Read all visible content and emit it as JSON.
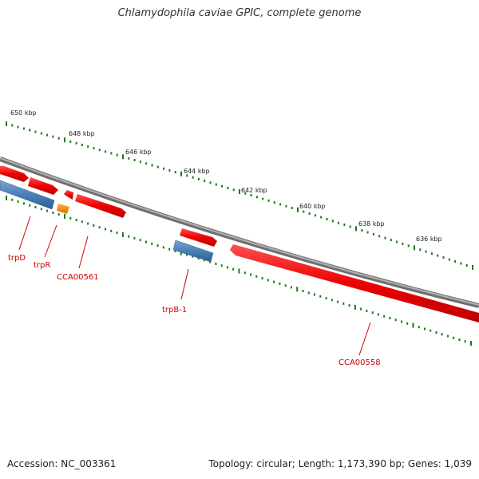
{
  "title": "Chlamydophila caviae GPIC, complete genome",
  "footer": {
    "accession": "Accession: NC_003361",
    "summary": "Topology: circular; Length: 1,173,390 bp; Genes: 1,039"
  },
  "colors": {
    "backbone": "#888888",
    "gene_forward": "#ee0000",
    "gene_orf": "#ff8800",
    "feature": "#4a7fb5",
    "tick": "#1a7a1a",
    "label": "#cc0000"
  },
  "ticks": [
    {
      "label": "650 kbp"
    },
    {
      "label": "648 kbp"
    },
    {
      "label": "646 kbp"
    },
    {
      "label": "644 kbp"
    },
    {
      "label": "642 kbp"
    },
    {
      "label": "640 kbp"
    },
    {
      "label": "638 kbp"
    },
    {
      "label": "636 kbp"
    }
  ],
  "genes": [
    {
      "label": "trpD"
    },
    {
      "label": "trpR"
    },
    {
      "label": "CCA00561"
    },
    {
      "label": "trpB-1"
    },
    {
      "label": "CCA00558"
    }
  ]
}
